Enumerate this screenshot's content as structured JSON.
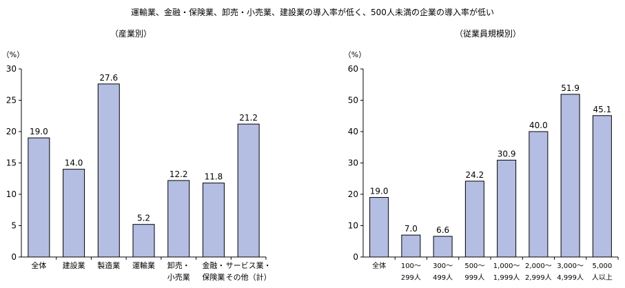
{
  "page": {
    "title": "運輸業、金融・保険業、卸売・小売業、建設業の導入率が低く、500人未満の企業の導入率が低い"
  },
  "chart_data": [
    {
      "type": "bar",
      "title": "（産業別）",
      "ylabel": "（%）",
      "ylim": [
        0,
        30
      ],
      "yticks": [
        0,
        5,
        10,
        15,
        20,
        25,
        30
      ],
      "categories": [
        [
          "全体"
        ],
        [
          "建設業"
        ],
        [
          "製造業"
        ],
        [
          "運輸業"
        ],
        [
          "卸売・",
          "小売業"
        ],
        [
          "金融・",
          "保険業"
        ],
        [
          "サービス業・",
          "その他（計）"
        ]
      ],
      "values": [
        19.0,
        14.0,
        27.6,
        5.2,
        12.2,
        11.8,
        21.2
      ],
      "value_labels": [
        "19.0",
        "14.0",
        "27.6",
        "5.2",
        "12.2",
        "11.8",
        "21.2"
      ],
      "bar_color": "#b4bde2"
    },
    {
      "type": "bar",
      "title": "（従業員規模別）",
      "ylabel": "（%）",
      "ylim": [
        0,
        60
      ],
      "yticks": [
        0,
        10,
        20,
        30,
        40,
        50,
        60
      ],
      "categories": [
        [
          "全体"
        ],
        [
          "100～",
          "299人"
        ],
        [
          "300～",
          "499人"
        ],
        [
          "500～",
          "999人"
        ],
        [
          "1,000～",
          "1,999人"
        ],
        [
          "2,000～",
          "2,999人"
        ],
        [
          "3,000～",
          "4,999人"
        ],
        [
          "5,000",
          "人以上"
        ]
      ],
      "values": [
        19.0,
        7.0,
        6.6,
        24.2,
        30.9,
        40.0,
        51.9,
        45.1
      ],
      "value_labels": [
        "19.0",
        "7.0",
        "6.6",
        "24.2",
        "30.9",
        "40.0",
        "51.9",
        "45.1"
      ],
      "bar_color": "#b4bde2"
    }
  ]
}
